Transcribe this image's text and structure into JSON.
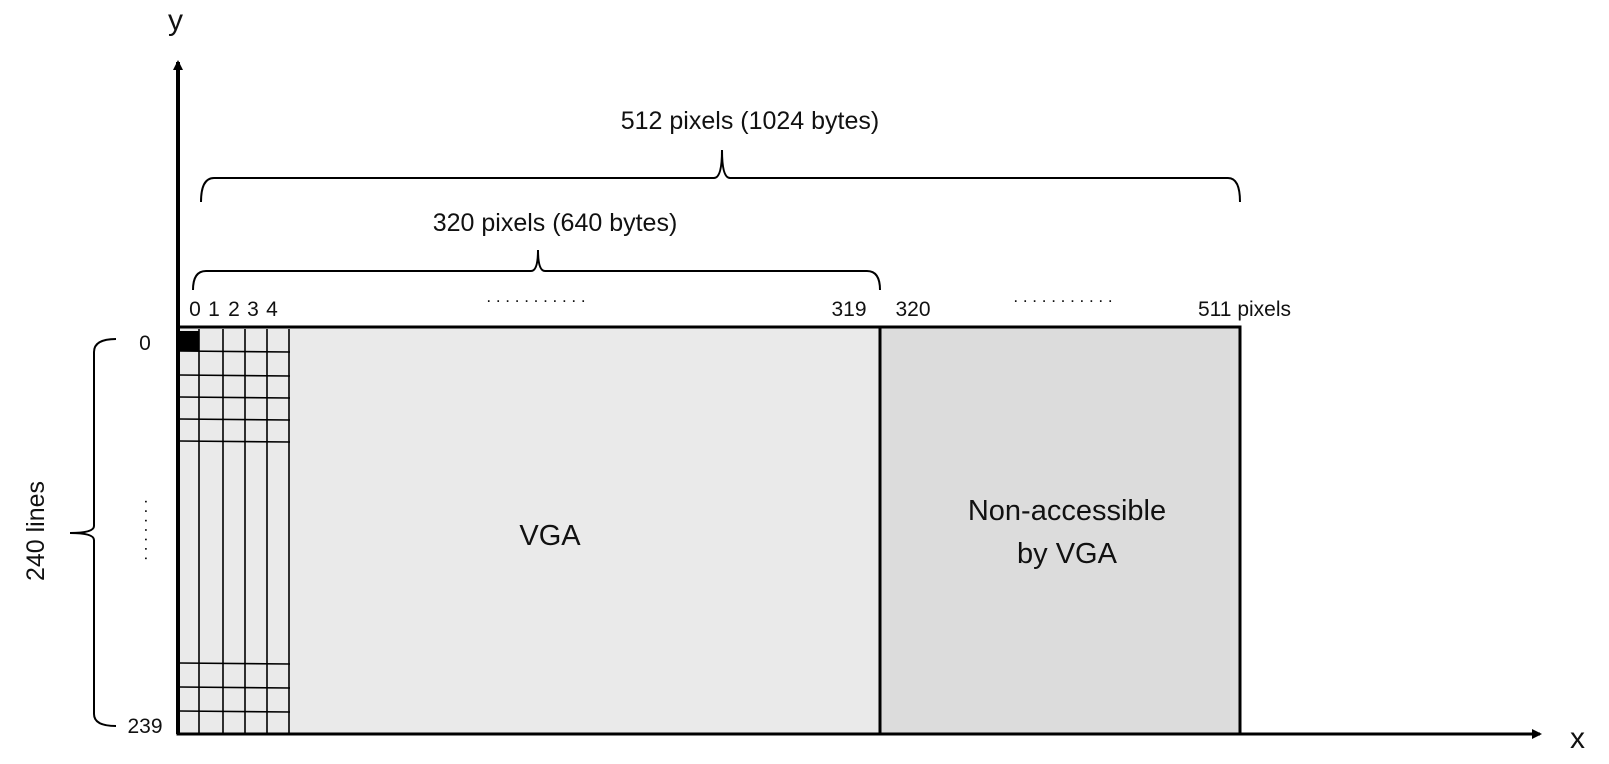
{
  "axes": {
    "x_label": "x",
    "y_label": "y"
  },
  "brackets": {
    "total_width": "512 pixels (1024 bytes)",
    "vga_width": "320 pixels (640 bytes)",
    "height": "240 lines"
  },
  "column_labels": {
    "first": [
      "0",
      "1",
      "2",
      "3",
      "4"
    ],
    "vga_last": "319",
    "non_vga_first": "320",
    "last": "511 pixels",
    "ellipsis": ". . . . . . . . . . ."
  },
  "row_labels": {
    "first": "0",
    "last": "239",
    "ellipsis": ". . . . . . ."
  },
  "regions": {
    "vga": "VGA",
    "non_accessible_line1": "Non-accessible",
    "non_accessible_line2": "by VGA"
  },
  "colors": {
    "vga_fill": "#eaeaea",
    "non_accessible_fill": "#dcdcdc",
    "stroke": "#000000",
    "first_pixel_fill": "#000000"
  }
}
